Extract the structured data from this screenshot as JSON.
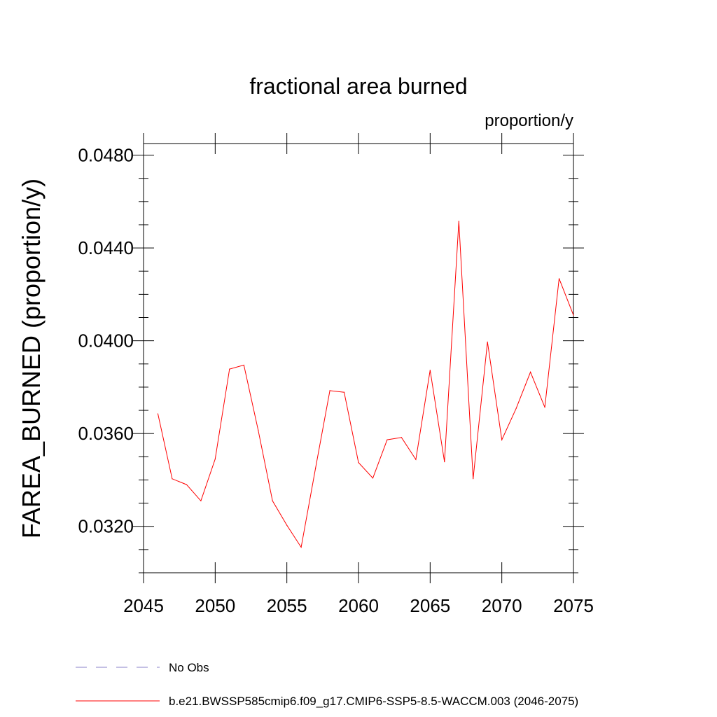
{
  "chart_data": {
    "type": "line",
    "title": "fractional area burned",
    "units_label": "proportion/y",
    "xlabel": "",
    "ylabel": "FAREA_BURNED  (proportion/y)",
    "xlim": [
      2045,
      2075
    ],
    "ylim": [
      0.03,
      0.0485
    ],
    "x_ticks": [
      2045,
      2050,
      2055,
      2060,
      2065,
      2070,
      2075
    ],
    "x_tick_labels": [
      "2045",
      "2050",
      "2055",
      "2060",
      "2065",
      "2070",
      "2075"
    ],
    "y_ticks": [
      0.032,
      0.036,
      0.04,
      0.044,
      0.048
    ],
    "y_tick_labels": [
      "0.0320",
      "0.0360",
      "0.0400",
      "0.0440",
      "0.0480"
    ],
    "grid": false,
    "series": [
      {
        "name": "b.e21.BWSSP585cmip6.f09_g17.CMIP6-SSP5-8.5-WACCM.003 (2046-2075)",
        "color": "#ff0000",
        "x": [
          2046,
          2047,
          2048,
          2049,
          2050,
          2051,
          2052,
          2053,
          2054,
          2055,
          2056,
          2057,
          2058,
          2059,
          2060,
          2061,
          2062,
          2063,
          2064,
          2065,
          2066,
          2067,
          2068,
          2069,
          2070,
          2071,
          2072,
          2073,
          2074,
          2075
        ],
        "values": [
          0.03685,
          0.03405,
          0.0338,
          0.0331,
          0.0349,
          0.03878,
          0.03895,
          0.03615,
          0.0331,
          0.03205,
          0.0311,
          0.0345,
          0.03785,
          0.03778,
          0.03475,
          0.03408,
          0.03573,
          0.03583,
          0.03488,
          0.03873,
          0.03478,
          0.04515,
          0.03405,
          0.03995,
          0.03573,
          0.03708,
          0.03865,
          0.03713,
          0.04268,
          0.0411
        ]
      }
    ],
    "legend": {
      "placement": "bottom-left",
      "entries": [
        {
          "label": "No Obs",
          "color": "#8a80c8",
          "style": "dashed"
        },
        {
          "label": "b.e21.BWSSP585cmip6.f09_g17.CMIP6-SSP5-8.5-WACCM.003 (2046-2075)",
          "color": "#ff0000",
          "style": "solid"
        }
      ]
    }
  }
}
